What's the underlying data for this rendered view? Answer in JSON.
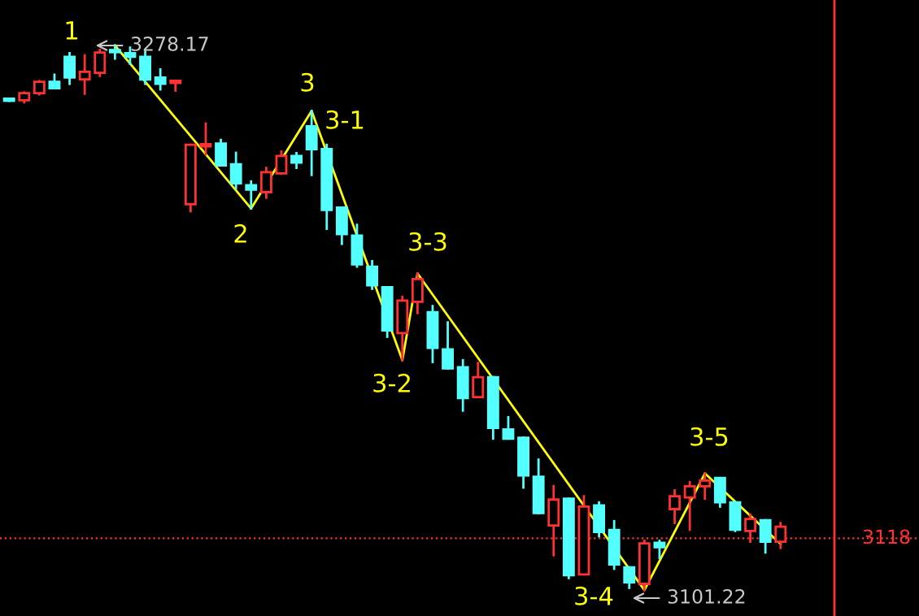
{
  "chart_data": {
    "type": "candlestick",
    "categories": [
      null,
      null,
      null,
      null,
      null,
      null,
      null,
      null,
      null,
      null,
      null,
      null,
      null,
      null,
      null,
      null,
      null,
      null,
      null,
      null,
      null,
      null,
      null,
      null,
      null,
      null,
      null,
      null,
      null,
      null,
      null,
      null,
      null,
      null,
      null,
      null,
      null,
      null,
      null,
      null,
      null,
      null,
      null,
      null,
      null,
      null,
      null,
      null,
      null,
      null,
      null,
      null
    ],
    "ohlc": [
      [
        3260.7,
        3260.7,
        3260.2,
        3260.2
      ],
      [
        3260.4,
        3262.9,
        3259.7,
        3262.7
      ],
      [
        3262.7,
        3266.6,
        3262.3,
        3266.4
      ],
      [
        3266.4,
        3268.7,
        3264.3,
        3264.3
      ],
      [
        3274.5,
        3275.7,
        3265.7,
        3267.8
      ],
      [
        3267.2,
        3275.0,
        3262.5,
        3269.6
      ],
      [
        3269.3,
        3276.7,
        3268.3,
        3275.9
      ],
      [
        3276.3,
        3278.17,
        3273.9,
        3276.0
      ],
      [
        3275.7,
        3277.5,
        3272.2,
        3274.5
      ],
      [
        3274.5,
        3276.2,
        3265.7,
        3267.1
      ],
      [
        3267.8,
        3270.4,
        3263.9,
        3265.7
      ],
      [
        3266.0,
        3266.2,
        3263.5,
        3266.2
      ],
      [
        3226.6,
        3245.9,
        3224.3,
        3245.9
      ],
      [
        3245.4,
        3252.8,
        3242.8,
        3245.9
      ],
      [
        3246.3,
        3247.5,
        3239.2,
        3239.2
      ],
      [
        3239.6,
        3243.3,
        3231.7,
        3233.4
      ],
      [
        3232.8,
        3234.0,
        3225.2,
        3231.3
      ],
      [
        3230.5,
        3238.4,
        3228.7,
        3237.0
      ],
      [
        3236.6,
        3243.7,
        3236.6,
        3242.3
      ],
      [
        3242.3,
        3243.2,
        3238.4,
        3240.1
      ],
      [
        3251.9,
        3256.9,
        3236.1,
        3244.5
      ],
      [
        3244.5,
        3245.9,
        3218.6,
        3224.7
      ],
      [
        3225.5,
        3225.5,
        3213.7,
        3216.9
      ],
      [
        3216.4,
        3219.9,
        3206.3,
        3207.0
      ],
      [
        3206.3,
        3208.1,
        3199.1,
        3200.2
      ],
      [
        3199.6,
        3199.6,
        3183.5,
        3185.6
      ],
      [
        3184.7,
        3196.5,
        3175.9,
        3195.3
      ],
      [
        3194.9,
        3204.1,
        3191.2,
        3202.3
      ],
      [
        3191.5,
        3193.5,
        3175.3,
        3179.9
      ],
      [
        3179.4,
        3188.2,
        3173.2,
        3173.2
      ],
      [
        3173.6,
        3175.9,
        3159.5,
        3163.6
      ],
      [
        3163.9,
        3175.0,
        3163.9,
        3170.4
      ],
      [
        3170.4,
        3170.4,
        3150.4,
        3153.9
      ],
      [
        3153.4,
        3157.4,
        3150.4,
        3150.4
      ],
      [
        3150.7,
        3150.7,
        3134.5,
        3138.4
      ],
      [
        3138.0,
        3143.6,
        3126.2,
        3126.2
      ],
      [
        3122.2,
        3135.0,
        3112.5,
        3130.6
      ],
      [
        3130.9,
        3130.9,
        3105.1,
        3106.0
      ],
      [
        3106.3,
        3131.7,
        3106.3,
        3128.3
      ],
      [
        3128.7,
        3129.7,
        3118.7,
        3120.1
      ],
      [
        3120.7,
        3123.6,
        3108.1,
        3109.5
      ],
      [
        3108.6,
        3108.6,
        3101.9,
        3103.7
      ],
      [
        3103.2,
        3117.2,
        3101.22,
        3116.4
      ],
      [
        3116.6,
        3117.2,
        3111.6,
        3115.1
      ],
      [
        3127.5,
        3133.6,
        3123.0,
        3131.7
      ],
      [
        3131.3,
        3136.3,
        3120.8,
        3134.9
      ],
      [
        3134.9,
        3139.1,
        3130.9,
        3136.8
      ],
      [
        3137.6,
        3137.6,
        3128.3,
        3129.7
      ],
      [
        3129.7,
        3129.7,
        3120.4,
        3120.8
      ],
      [
        3120.4,
        3125.7,
        3116.9,
        3124.3
      ],
      [
        3123.9,
        3123.9,
        3113.4,
        3116.9
      ],
      [
        3116.9,
        3123.0,
        3114.9,
        3121.8
      ]
    ],
    "colors": [
      "#54ffff",
      "#ff3232",
      "#ff3232",
      "#54ffff",
      "#54ffff",
      "#ff3232",
      "#ff3232",
      "#54ffff",
      "#54ffff",
      "#54ffff",
      "#54ffff",
      "#ff3232",
      "#ff3232",
      "#ff3232",
      "#54ffff",
      "#54ffff",
      "#54ffff",
      "#ff3232",
      "#ff3232",
      "#54ffff",
      "#54ffff",
      "#54ffff",
      "#54ffff",
      "#54ffff",
      "#54ffff",
      "#54ffff",
      "#ff3232",
      "#ff3232",
      "#54ffff",
      "#54ffff",
      "#54ffff",
      "#ff3232",
      "#54ffff",
      "#54ffff",
      "#54ffff",
      "#54ffff",
      "#ff3232",
      "#54ffff",
      "#ff3232",
      "#54ffff",
      "#54ffff",
      "#54ffff",
      "#ff3232",
      "#54ffff",
      "#ff3232",
      "#ff3232",
      "#ff3232",
      "#54ffff",
      "#54ffff",
      "#ff3232",
      "#54ffff",
      "#ff3232"
    ],
    "series": [
      {
        "type": "line",
        "color": "#ffff00",
        "values": [
          null,
          null,
          null,
          null,
          null,
          null,
          null,
          3278.2,
          null,
          null,
          null,
          null,
          null,
          null,
          null,
          null,
          3225.2,
          null,
          null,
          null,
          3256.9,
          null,
          null,
          null,
          null,
          null,
          3175.9,
          3204.1,
          null,
          null,
          null,
          null,
          null,
          null,
          null,
          null,
          null,
          null,
          null,
          null,
          null,
          null,
          3101.2,
          null,
          null,
          null,
          3139.1,
          null,
          null,
          null,
          null,
          3116.2
        ]
      }
    ],
    "annotations": [
      "1",
      "3278.17",
      "2",
      "3",
      "3-1",
      "3-2",
      "3-3",
      "3-4",
      "3-5",
      "3101.22"
    ],
    "ref_lines": [
      {
        "axis": "y",
        "value": 3118,
        "label": "3118",
        "color": "#ff3232",
        "line_style": "dotted"
      }
    ]
  }
}
